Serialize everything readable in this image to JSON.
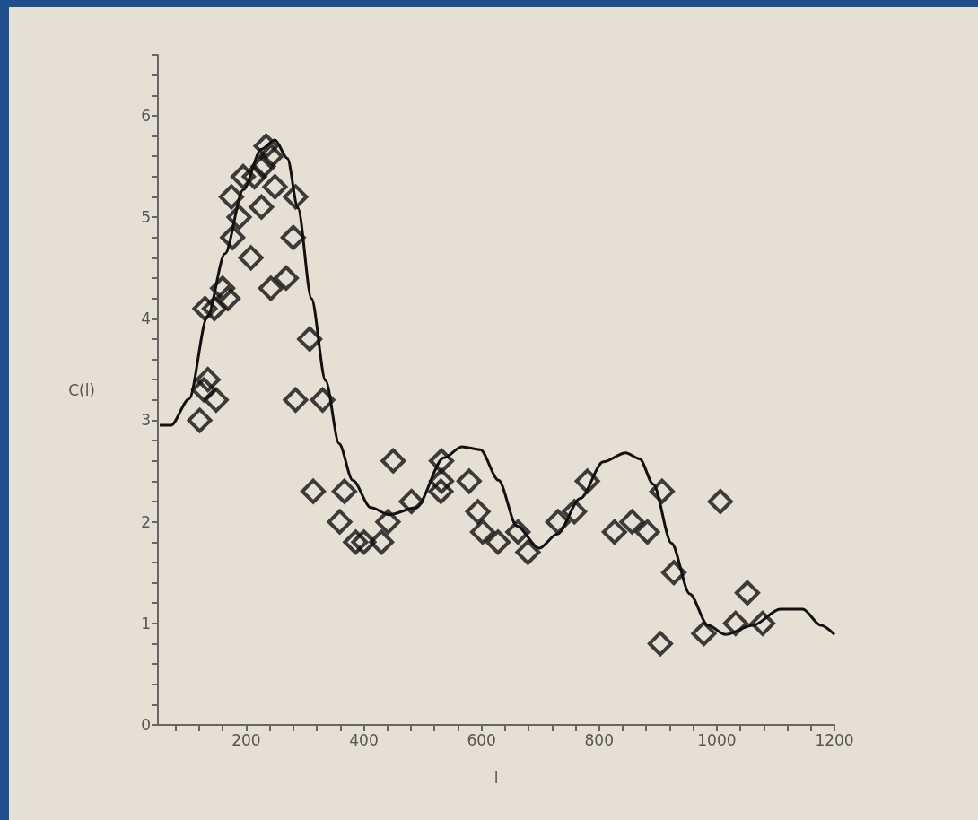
{
  "chart_data": {
    "type": "scatter",
    "xlabel": "l",
    "ylabel": "C(l)",
    "marker": "diamond",
    "grid": false,
    "xlim": [
      50,
      1200
    ],
    "xticks": [
      {
        "value": 80,
        "label": null
      },
      {
        "value": 120,
        "label": null
      },
      {
        "value": 160,
        "label": null
      },
      200,
      {
        "value": 240,
        "label": null
      },
      {
        "value": 280,
        "label": null
      },
      {
        "value": 320,
        "label": null
      },
      {
        "value": 360,
        "label": null
      },
      400,
      {
        "value": 440,
        "label": null
      },
      {
        "value": 480,
        "label": null
      },
      {
        "value": 520,
        "label": null
      },
      {
        "value": 560,
        "label": null
      },
      600,
      {
        "value": 640,
        "label": null
      },
      {
        "value": 680,
        "label": null
      },
      {
        "value": 720,
        "label": null
      },
      {
        "value": 760,
        "label": null
      },
      800,
      {
        "value": 840,
        "label": null
      },
      {
        "value": 880,
        "label": null
      },
      {
        "value": 920,
        "label": null
      },
      {
        "value": 960,
        "label": null
      },
      1000,
      {
        "value": 1040,
        "label": null
      },
      {
        "value": 1080,
        "label": null
      },
      {
        "value": 1120,
        "label": null
      },
      {
        "value": 1160,
        "label": null
      },
      1200
    ],
    "ylim": [
      0,
      6.6
    ],
    "yticks": [
      0,
      {
        "value": 0.2,
        "label": null
      },
      {
        "value": 0.4,
        "label": null
      },
      {
        "value": 0.6,
        "label": null
      },
      {
        "value": 0.8,
        "label": null
      },
      1,
      {
        "value": 1.2,
        "label": null
      },
      {
        "value": 1.4,
        "label": null
      },
      {
        "value": 1.6,
        "label": null
      },
      {
        "value": 1.8,
        "label": null
      },
      2,
      {
        "value": 2.2,
        "label": null
      },
      {
        "value": 2.4,
        "label": null
      },
      {
        "value": 2.6,
        "label": null
      },
      {
        "value": 2.8,
        "label": null
      },
      3,
      {
        "value": 3.2,
        "label": null
      },
      {
        "value": 3.4,
        "label": null
      },
      {
        "value": 3.6,
        "label": null
      },
      {
        "value": 3.8,
        "label": null
      },
      4,
      {
        "value": 4.2,
        "label": null
      },
      {
        "value": 4.4,
        "label": null
      },
      {
        "value": 4.6,
        "label": null
      },
      {
        "value": 4.8,
        "label": null
      },
      5,
      {
        "value": 5.2,
        "label": null
      },
      {
        "value": 5.4,
        "label": null
      },
      {
        "value": 5.6,
        "label": null
      },
      {
        "value": 5.8,
        "label": null
      },
      6,
      {
        "value": 6.2,
        "label": null
      },
      {
        "value": 6.4,
        "label": null
      },
      {
        "value": 6.6,
        "label": null
      }
    ],
    "series": [
      {
        "color": "#111111",
        "x": [
          121,
          135,
          149,
          128,
          130,
          146,
          160,
          169,
          177,
          175,
          188,
          195,
          208,
          214,
          226,
          229,
          234,
          242,
          249,
          242,
          268,
          284,
          280,
          308,
          284,
          330,
          314,
          367,
          359,
          386,
          400,
          430,
          441,
          450,
          481,
          532,
          532,
          531,
          579,
          594,
          602,
          628,
          662,
          679,
          730,
          758,
          780,
          826,
          856,
          882,
          907,
          927,
          904,
          978,
          1006,
          1032,
          1052,
          1078
        ],
        "values": [
          3.0,
          3.4,
          3.2,
          3.3,
          4.1,
          4.1,
          4.3,
          4.2,
          4.8,
          5.2,
          5.0,
          5.4,
          4.6,
          5.4,
          5.1,
          5.5,
          5.7,
          5.6,
          5.3,
          4.3,
          4.4,
          5.2,
          4.8,
          3.8,
          3.2,
          3.2,
          2.3,
          2.3,
          2.0,
          1.8,
          1.8,
          1.8,
          2.0,
          2.6,
          2.2,
          2.4,
          2.6,
          2.3,
          2.4,
          2.1,
          1.9,
          1.8,
          1.9,
          1.7,
          2.0,
          2.1,
          2.4,
          1.9,
          2.0,
          1.9,
          2.3,
          1.5,
          0.8,
          0.9,
          2.2,
          1.0,
          1.3,
          1.0
        ]
      },
      {
        "type": "line",
        "color": "#111111",
        "marker": "none",
        "x": [
          53,
          72,
          103,
          134,
          164,
          195,
          226,
          249,
          270,
          288,
          311,
          335,
          358,
          381,
          412,
          443,
          489,
          536,
          567,
          598,
          629,
          660,
          698,
          729,
          768,
          807,
          845,
          869,
          892,
          923,
          954,
          985,
          1015,
          1061,
          1108,
          1146,
          1177,
          1200
        ],
        "values": [
          2.95,
          2.95,
          3.21,
          4.02,
          4.64,
          5.27,
          5.67,
          5.76,
          5.58,
          5.09,
          4.2,
          3.39,
          2.77,
          2.41,
          2.14,
          2.07,
          2.14,
          2.63,
          2.74,
          2.71,
          2.41,
          1.96,
          1.74,
          1.88,
          2.23,
          2.59,
          2.68,
          2.62,
          2.37,
          1.79,
          1.29,
          0.98,
          0.89,
          0.98,
          1.14,
          1.14,
          0.98,
          0.89
        ]
      }
    ]
  }
}
